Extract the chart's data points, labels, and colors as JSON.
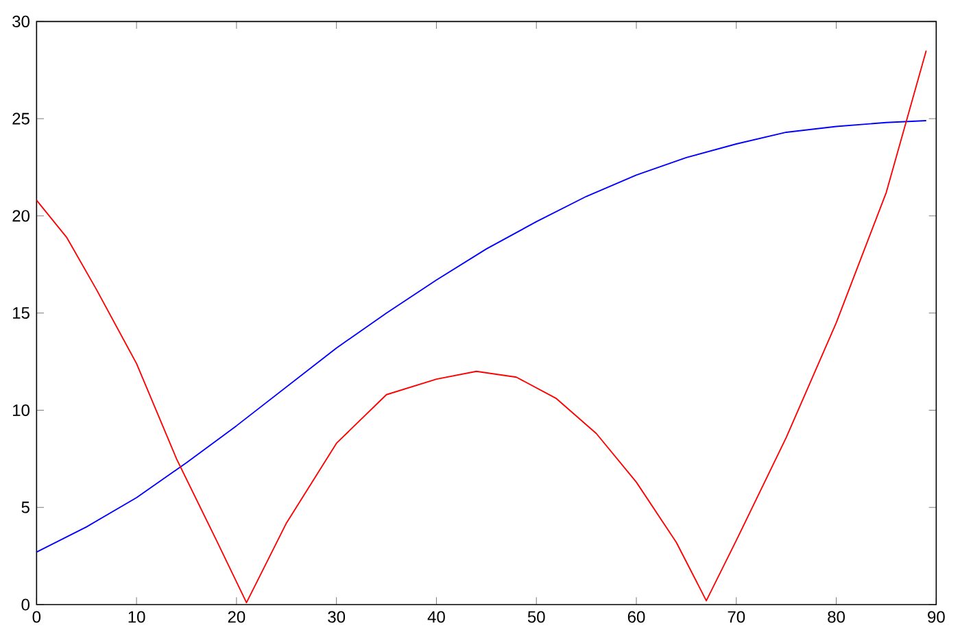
{
  "chart_data": {
    "type": "line",
    "x": [
      0,
      3,
      6,
      10,
      14,
      18,
      21,
      25,
      30,
      35,
      40,
      44,
      48,
      52,
      56,
      60,
      64,
      67,
      70,
      75,
      80,
      85,
      89
    ],
    "series": [
      {
        "color": "#0000ff",
        "x": [
          0,
          5,
          10,
          15,
          20,
          25,
          30,
          35,
          40,
          45,
          50,
          55,
          60,
          65,
          70,
          75,
          80,
          85,
          89
        ],
        "values": [
          2.7,
          4.0,
          5.5,
          7.3,
          9.2,
          11.2,
          13.2,
          15.0,
          16.7,
          18.3,
          19.7,
          21.0,
          22.1,
          23.0,
          23.7,
          24.3,
          24.6,
          24.8,
          24.9
        ]
      },
      {
        "color": "#ff0000",
        "values": [
          20.8,
          18.9,
          16.2,
          12.4,
          7.5,
          3.3,
          0.1,
          4.2,
          8.3,
          10.8,
          11.6,
          12.0,
          11.7,
          10.6,
          8.8,
          6.3,
          3.2,
          0.2,
          3.3,
          8.6,
          14.5,
          21.2,
          28.5
        ]
      }
    ],
    "xlim": [
      0,
      90
    ],
    "ylim": [
      0,
      30
    ],
    "xticks": [
      0,
      10,
      20,
      30,
      40,
      50,
      60,
      70,
      80,
      90
    ],
    "yticks": [
      0,
      5,
      10,
      15,
      20,
      25,
      30
    ],
    "grid": false,
    "marker": "none",
    "line_style": "solid"
  }
}
